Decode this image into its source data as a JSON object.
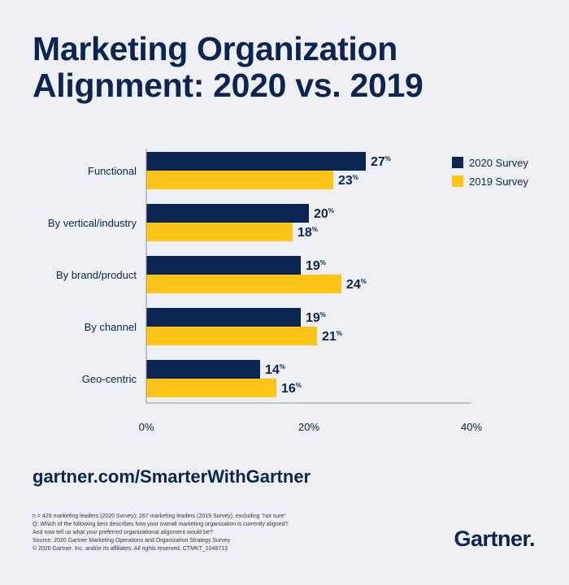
{
  "title": {
    "line1": "Marketing Organization",
    "line2": "Alignment: 2020 vs. 2019"
  },
  "colors": {
    "navy": "#0b2452",
    "gold": "#fdc315",
    "background": "#eef0f5"
  },
  "chart_data": {
    "type": "bar",
    "orientation": "horizontal",
    "categories": [
      "Functional",
      "By vertical/industry",
      "By brand/product",
      "By channel",
      "Geo-centric"
    ],
    "series": [
      {
        "name": "2020 Survey",
        "values": [
          27,
          20,
          19,
          19,
          14
        ],
        "color": "#0b2452"
      },
      {
        "name": "2019 Survey",
        "values": [
          23,
          18,
          24,
          21,
          16
        ],
        "color": "#fdc315"
      }
    ],
    "value_suffix": "%",
    "xlim": [
      0,
      40
    ],
    "xticks": [
      "0%",
      "20%",
      "40%"
    ],
    "xtick_values": [
      0,
      20,
      40
    ],
    "legend_position": "top-right"
  },
  "url": "gartner.com/SmarterWithGartner",
  "footnotes": [
    "n = 429 marketing leaders (2020 Survey); 267 marketing leaders (2019 Survey), excluding \"not sure\"",
    "Q: Which of the following best describes how your overall marketing organization is currently aligned?",
    "And now tell us what your preferred organizational alignment would be?",
    "Source: 2020 Gartner Marketing Operations and Organization Strategy Survey",
    "© 2020 Gartner, Inc. and/or its affiliates. All rights reserved. CTMKT_1049713"
  ],
  "logo": {
    "text": "Gartner",
    "mark": "."
  }
}
